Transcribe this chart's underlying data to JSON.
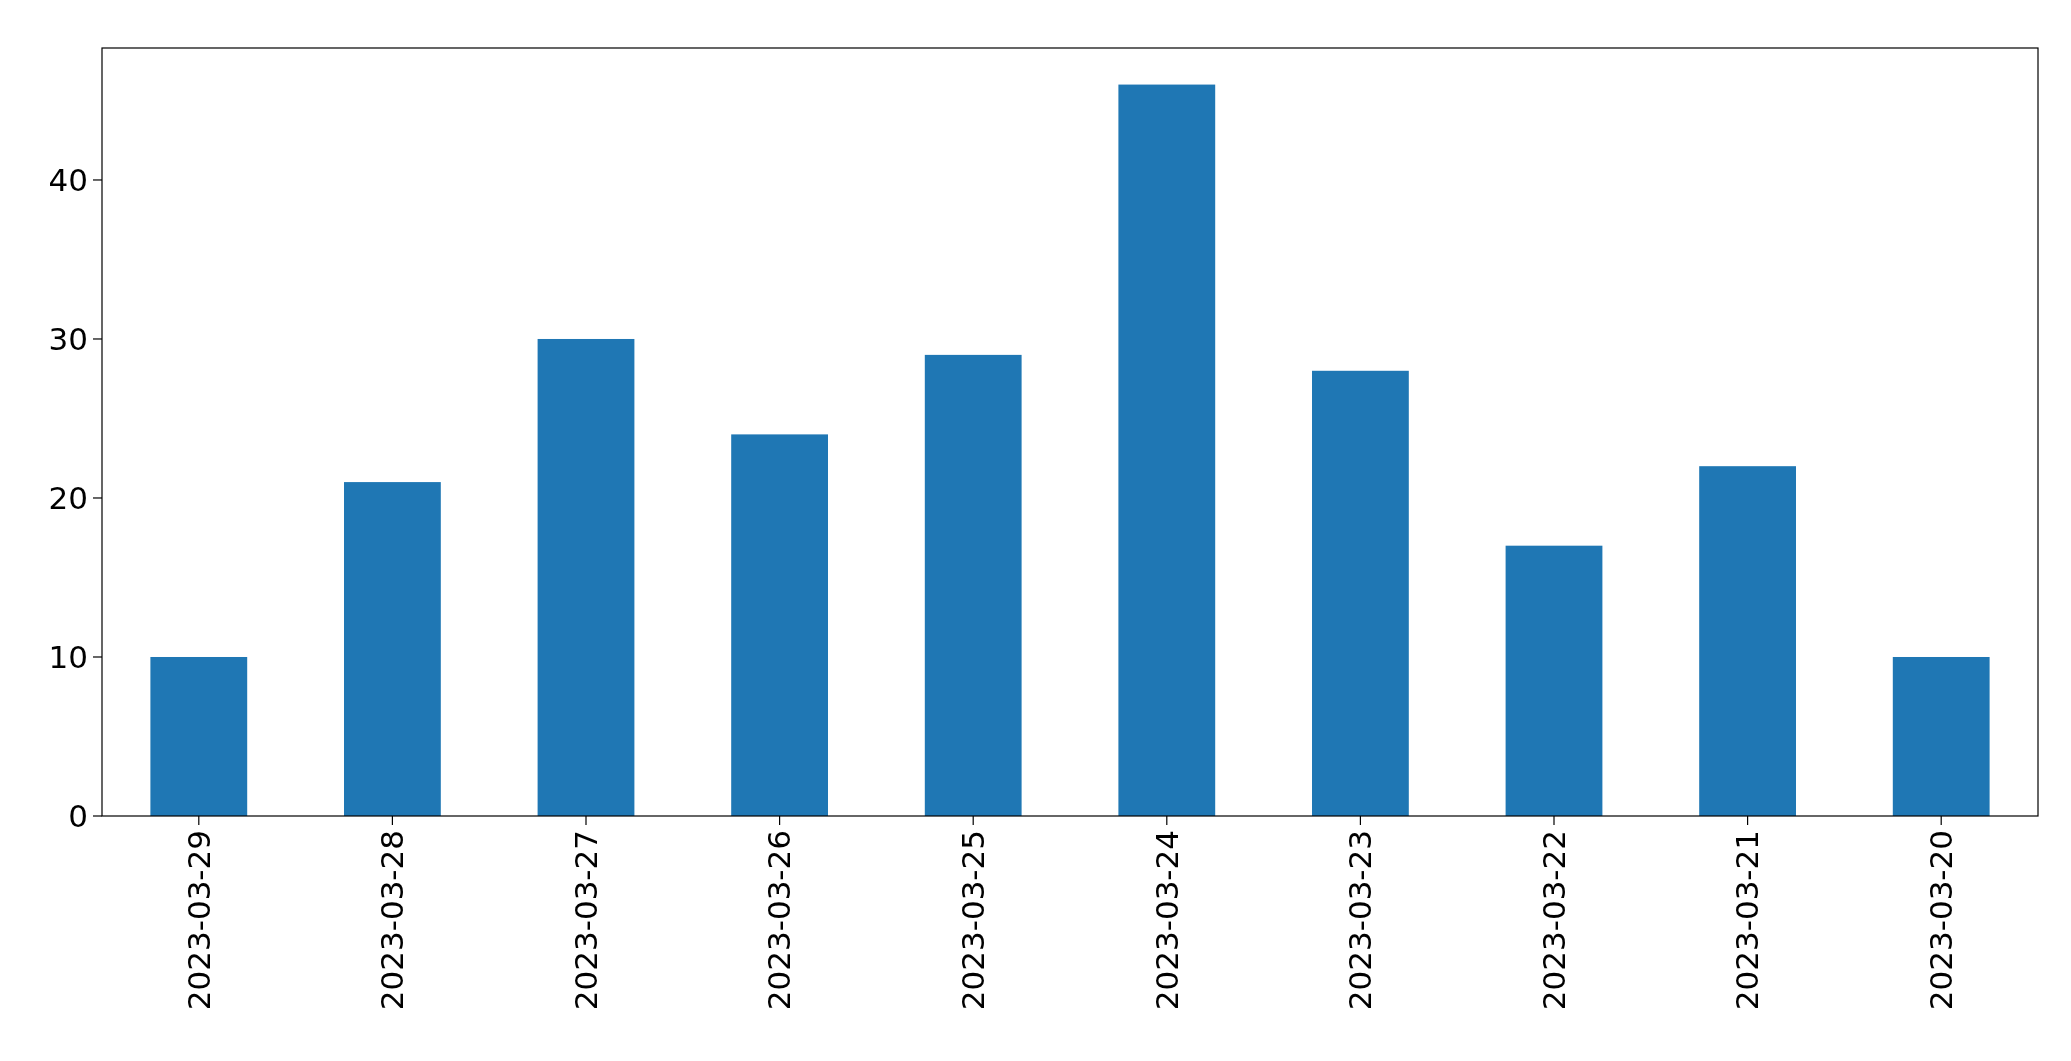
{
  "chart_data": {
    "type": "bar",
    "categories": [
      "2023-03-29",
      "2023-03-28",
      "2023-03-27",
      "2023-03-26",
      "2023-03-25",
      "2023-03-24",
      "2023-03-23",
      "2023-03-22",
      "2023-03-21",
      "2023-03-20"
    ],
    "values": [
      10,
      21,
      30,
      24,
      29,
      46,
      28,
      17,
      22,
      10
    ],
    "color": "#1f77b4",
    "ylim": [
      0,
      48.3
    ],
    "yticks": [
      0,
      10,
      20,
      30,
      40
    ],
    "grid": false
  }
}
